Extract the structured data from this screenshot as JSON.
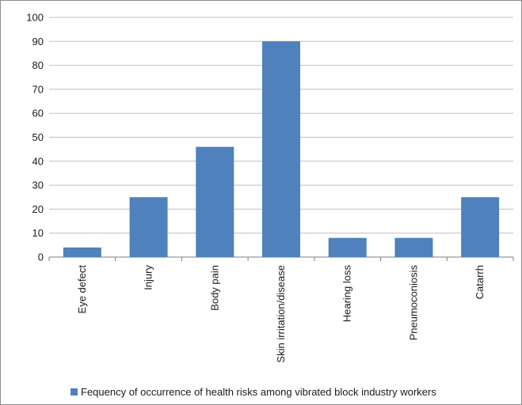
{
  "chart_data": {
    "type": "bar",
    "categories": [
      "Eye defect",
      "Injury",
      "Body pain",
      "Skin irritation/disease",
      "Hearing loss",
      "Pneumoconiosis",
      "Catarrh"
    ],
    "series": [
      {
        "name": "Fequency of occurrence of health risks among vibrated block industry workers",
        "values": [
          4,
          25,
          46,
          90,
          8,
          8,
          25
        ],
        "color": "#4f81bd"
      }
    ],
    "yticks": [
      "0",
      "10",
      "20",
      "30",
      "40",
      "50",
      "60",
      "70",
      "80",
      "90",
      "100"
    ],
    "ylim": [
      0,
      100
    ],
    "grid": true,
    "legend_position": "bottom"
  }
}
